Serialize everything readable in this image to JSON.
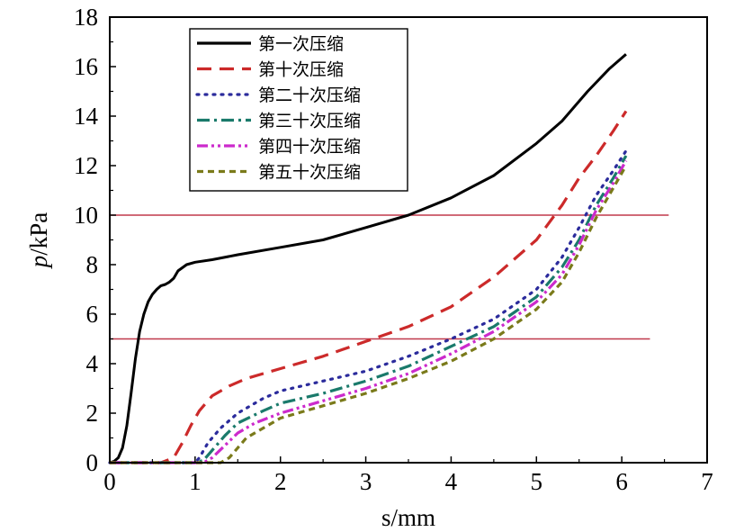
{
  "chart_data": {
    "type": "line",
    "xlabel": "s/mm",
    "ylabel_italic": "p",
    "ylabel_rest": "/kPa",
    "xlim": [
      0,
      7
    ],
    "ylim": [
      0,
      18
    ],
    "xticks": [
      "0",
      "1",
      "2",
      "3",
      "4",
      "5",
      "6",
      "7"
    ],
    "yticks": [
      "0",
      "2",
      "4",
      "6",
      "8",
      "10",
      "12",
      "14",
      "16",
      "18"
    ],
    "grid": false,
    "legend_position": "top-left",
    "reference_lines": [
      {
        "y": 10,
        "x_range": [
          0,
          6.55
        ],
        "color": "#c0394b"
      },
      {
        "y": 5,
        "x_range": [
          0,
          6.33
        ],
        "color": "#c0394b"
      }
    ],
    "series": [
      {
        "name": "第一次压缩",
        "color": "#000000",
        "dash": "solid",
        "x": [
          0,
          0.05,
          0.1,
          0.15,
          0.2,
          0.25,
          0.3,
          0.35,
          0.4,
          0.45,
          0.5,
          0.55,
          0.6,
          0.65,
          0.7,
          0.75,
          0.8,
          0.9,
          1,
          1.2,
          1.5,
          2,
          2.5,
          3,
          3.5,
          4,
          4.5,
          5,
          5.3,
          5.6,
          5.85,
          6.05
        ],
        "y": [
          0,
          0.05,
          0.2,
          0.6,
          1.5,
          2.8,
          4.2,
          5.3,
          6.0,
          6.5,
          6.8,
          7.0,
          7.15,
          7.2,
          7.3,
          7.45,
          7.75,
          8.0,
          8.1,
          8.2,
          8.4,
          8.7,
          9.0,
          9.5,
          10.0,
          10.7,
          11.6,
          12.9,
          13.8,
          15.0,
          15.9,
          16.5
        ]
      },
      {
        "name": "第十次压缩",
        "color": "#cc2a2a",
        "dash": "long-dash",
        "x": [
          0,
          0.3,
          0.6,
          0.75,
          0.85,
          0.95,
          1.05,
          1.2,
          1.4,
          1.6,
          1.8,
          2,
          2.5,
          3,
          3.5,
          4,
          4.5,
          5,
          5.3,
          5.5,
          5.7,
          5.9,
          6.05
        ],
        "y": [
          0,
          0,
          0,
          0.2,
          0.8,
          1.5,
          2.1,
          2.7,
          3.1,
          3.4,
          3.6,
          3.8,
          4.3,
          4.9,
          5.5,
          6.3,
          7.5,
          9.0,
          10.4,
          11.5,
          12.4,
          13.4,
          14.2
        ]
      },
      {
        "name": "第二十次压缩",
        "color": "#2b2b9c",
        "dash": "dot",
        "x": [
          0,
          0.5,
          1,
          1.05,
          1.15,
          1.3,
          1.5,
          1.8,
          2,
          2.5,
          3,
          3.5,
          4,
          4.5,
          5,
          5.3,
          5.5,
          5.7,
          5.9,
          6.05
        ],
        "y": [
          0,
          0,
          0,
          0.2,
          0.8,
          1.4,
          2.0,
          2.6,
          2.9,
          3.3,
          3.7,
          4.3,
          5.0,
          5.8,
          7.0,
          8.3,
          9.5,
          10.8,
          11.8,
          12.6
        ]
      },
      {
        "name": "第三十次压缩",
        "color": "#1a7a6b",
        "dash": "dash-dot",
        "x": [
          0,
          0.5,
          1,
          1.1,
          1.2,
          1.35,
          1.5,
          1.8,
          2,
          2.5,
          3,
          3.5,
          4,
          4.5,
          5,
          5.3,
          5.5,
          5.7,
          5.9,
          6.05
        ],
        "y": [
          0,
          0,
          0,
          0.1,
          0.5,
          1.1,
          1.6,
          2.1,
          2.4,
          2.8,
          3.3,
          3.9,
          4.7,
          5.5,
          6.7,
          7.9,
          9.0,
          10.4,
          11.5,
          12.4
        ]
      },
      {
        "name": "第四十次压缩",
        "color": "#cc2acc",
        "dash": "dash-dot-dot",
        "x": [
          0,
          0.5,
          1.1,
          1.2,
          1.35,
          1.5,
          1.7,
          2,
          2.5,
          3,
          3.5,
          4,
          4.5,
          5,
          5.3,
          5.5,
          5.7,
          5.9,
          6.05
        ],
        "y": [
          0,
          0,
          0,
          0.2,
          0.7,
          1.2,
          1.6,
          2.0,
          2.5,
          3.0,
          3.6,
          4.4,
          5.3,
          6.5,
          7.6,
          8.8,
          10.2,
          11.3,
          12.2
        ]
      },
      {
        "name": "第五十次压缩",
        "color": "#7a7a1a",
        "dash": "short-dash",
        "x": [
          0,
          0.5,
          1.3,
          1.4,
          1.5,
          1.6,
          1.8,
          2,
          2.5,
          3,
          3.5,
          4,
          4.5,
          5,
          5.3,
          5.5,
          5.7,
          5.9,
          6.05
        ],
        "y": [
          0,
          0,
          0,
          0.2,
          0.6,
          1.0,
          1.4,
          1.8,
          2.3,
          2.8,
          3.4,
          4.1,
          5.0,
          6.2,
          7.3,
          8.5,
          9.9,
          11.1,
          12.0
        ]
      }
    ]
  }
}
